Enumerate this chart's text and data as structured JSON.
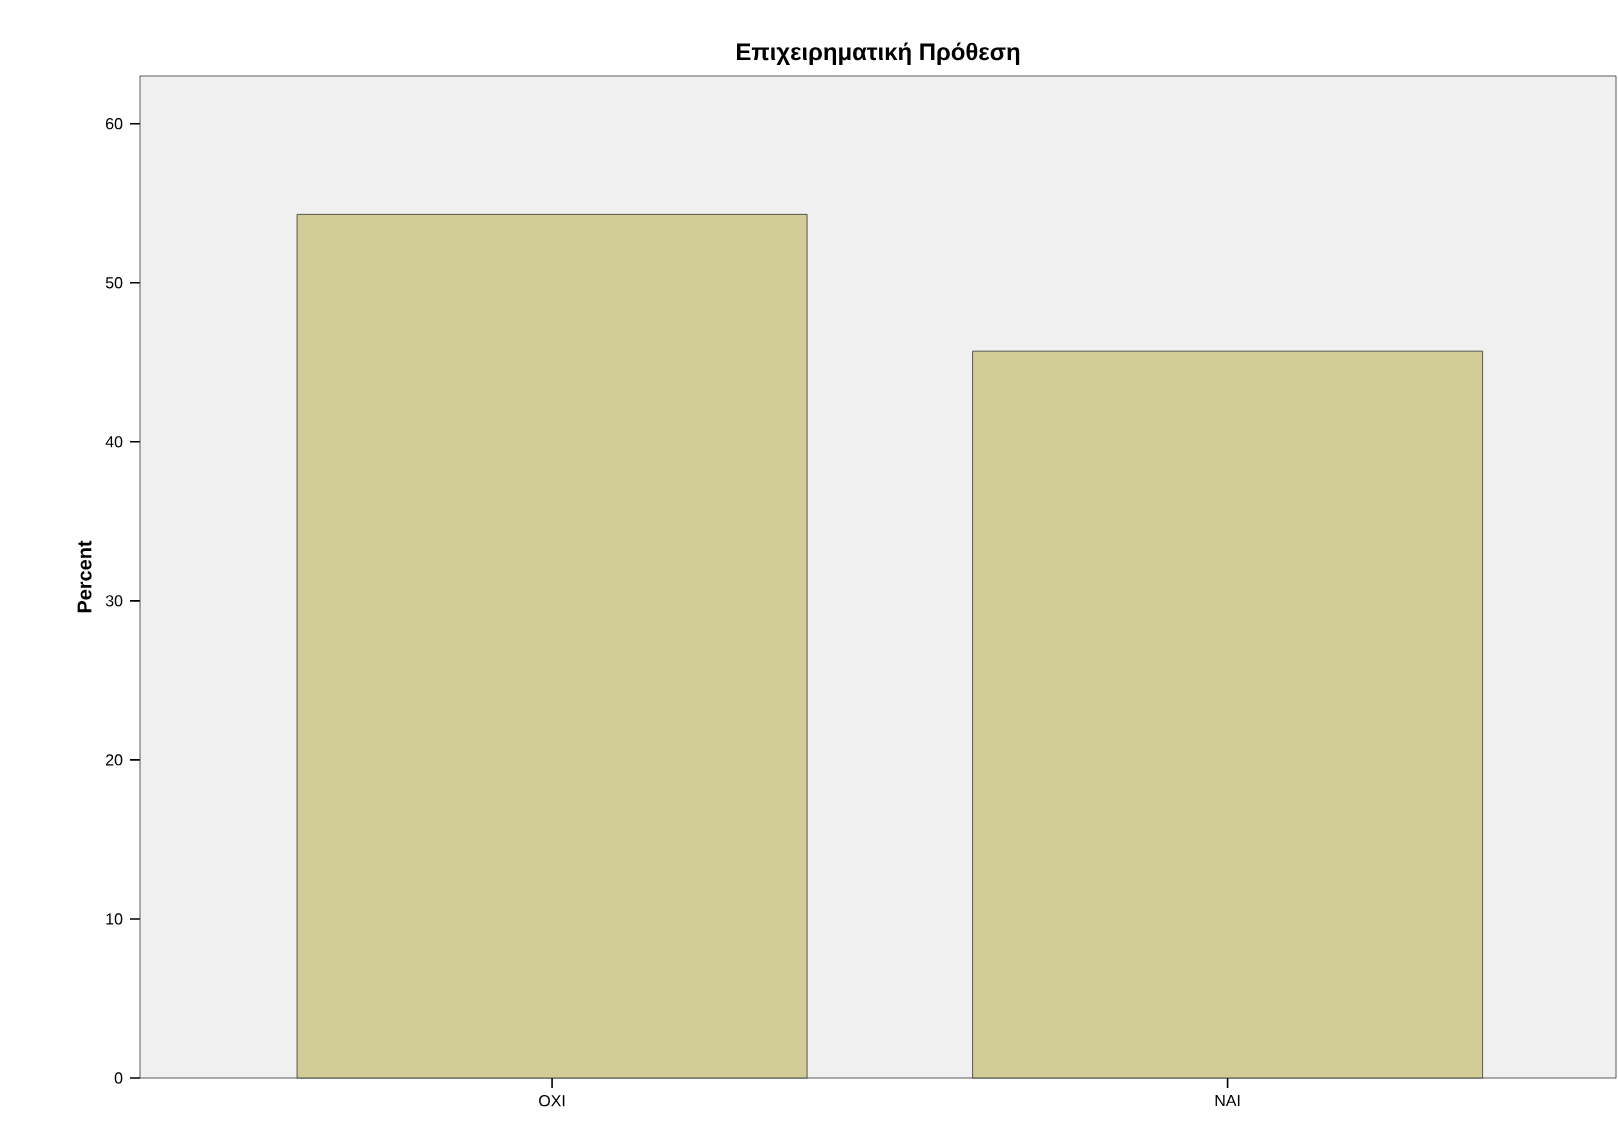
{
  "chart_data": {
    "type": "bar",
    "title": "Επιχειρηματική Πρόθεση",
    "ylabel": "Percent",
    "categories": [
      "ΟΧΙ",
      "ΝΑΙ"
    ],
    "values": [
      54.3,
      45.7
    ],
    "color": "#d2cc96",
    "ylim": [
      0,
      63
    ],
    "yticks": [
      0,
      10,
      20,
      30,
      40,
      50,
      60
    ],
    "grid": false
  }
}
